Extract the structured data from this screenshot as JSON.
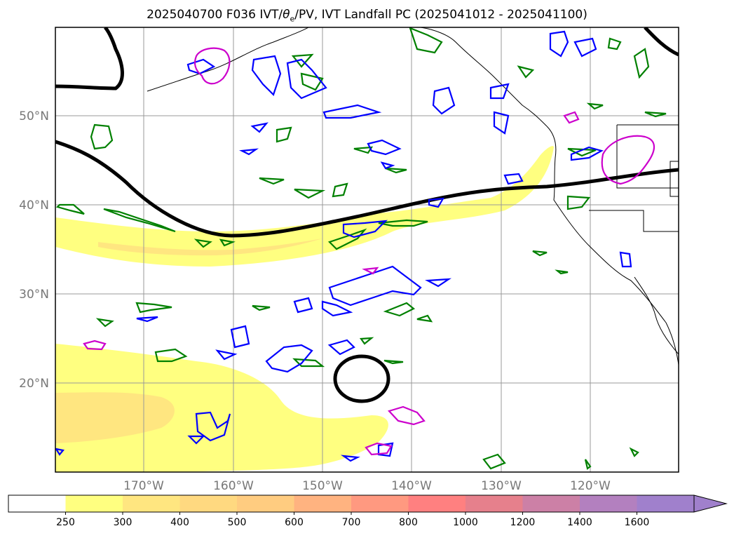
{
  "title_prefix": "2025040700 F036 IVT/",
  "title_theta": "θ",
  "title_sub": "e",
  "title_suffix": "/PV, IVT Landfall PC (2025041012 - 2025041100)",
  "map": {
    "lat_labels": [
      "50°N",
      "40°N",
      "30°N",
      "20°N"
    ],
    "lon_labels": [
      "170°W",
      "160°W",
      "150°W",
      "140°W",
      "130°W",
      "120°W"
    ]
  },
  "colorbar": {
    "ticks": [
      "250",
      "300",
      "400",
      "500",
      "600",
      "700",
      "800",
      "1000",
      "1200",
      "1400",
      "1600"
    ],
    "colors": [
      "#ffffff",
      "#ffff80",
      "#ffe680",
      "#ffd980",
      "#ffcc80",
      "#ffb380",
      "#ff9980",
      "#ff8080",
      "#e6808c",
      "#cc80a6",
      "#b380bf",
      "#a080cc"
    ]
  },
  "colors": {
    "ivt_light": "#ffff80",
    "ivt_mid": "#ffe680",
    "pv_contour": "#000000",
    "theta_contour": "#008000",
    "blue_contour": "#0000ff",
    "magenta_contour": "#cc00cc"
  }
}
